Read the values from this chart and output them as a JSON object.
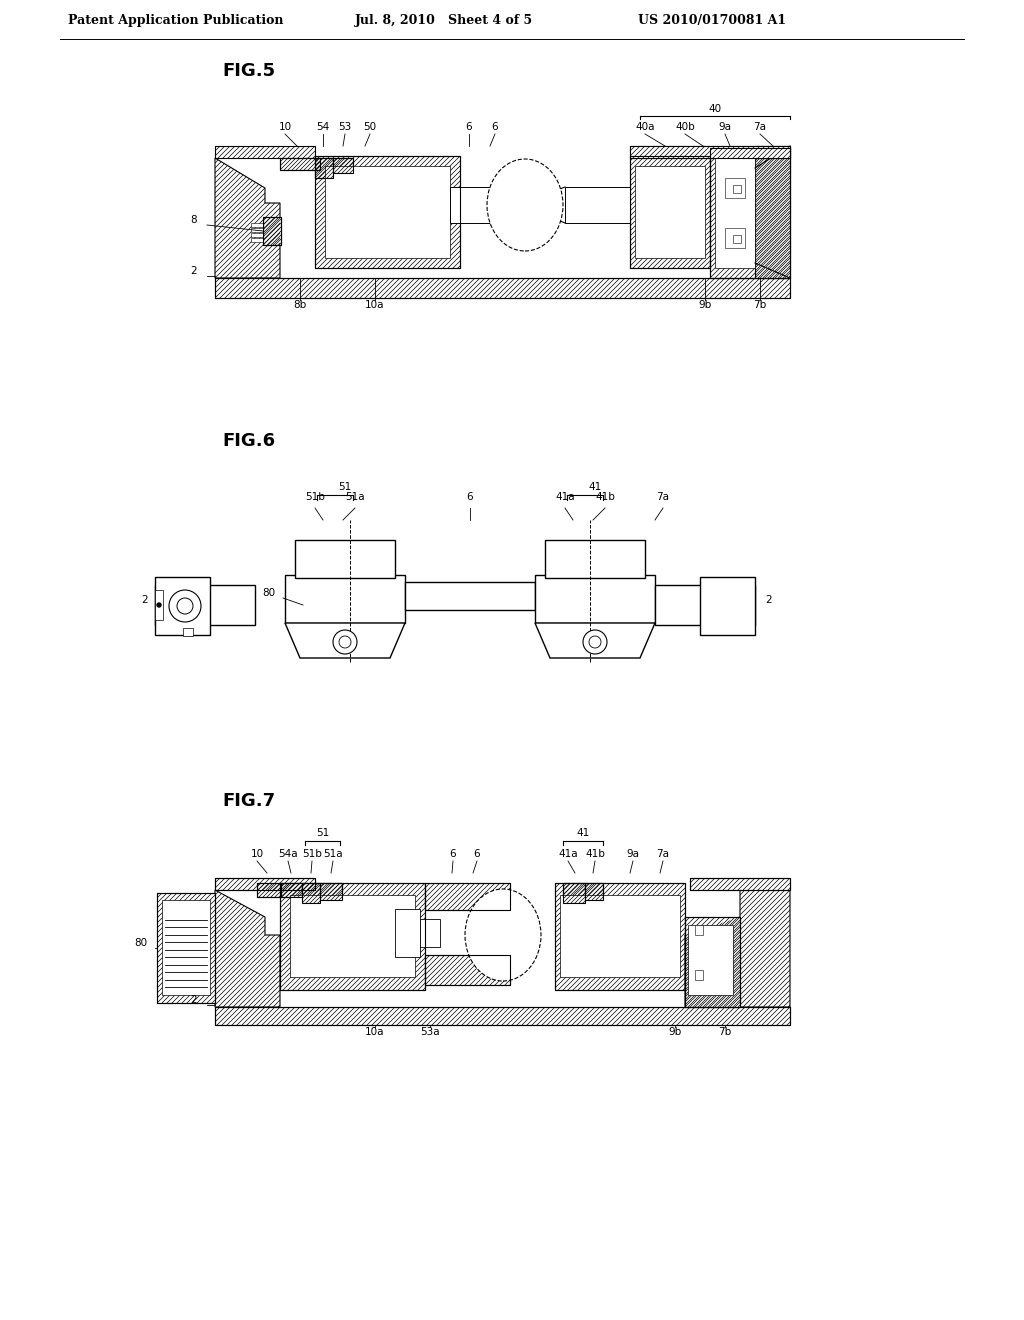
{
  "page_title_left": "Patent Application Publication",
  "page_title_mid": "Jul. 8, 2010   Sheet 4 of 5",
  "page_title_right": "US 2010/0170081 A1",
  "background_color": "#ffffff",
  "line_color": "#000000",
  "fig5_label": "FIG.5",
  "fig6_label": "FIG.6",
  "fig7_label": "FIG.7",
  "header_fontsize": 9,
  "label_fontsize": 7.5,
  "fig_label_fontsize": 13
}
